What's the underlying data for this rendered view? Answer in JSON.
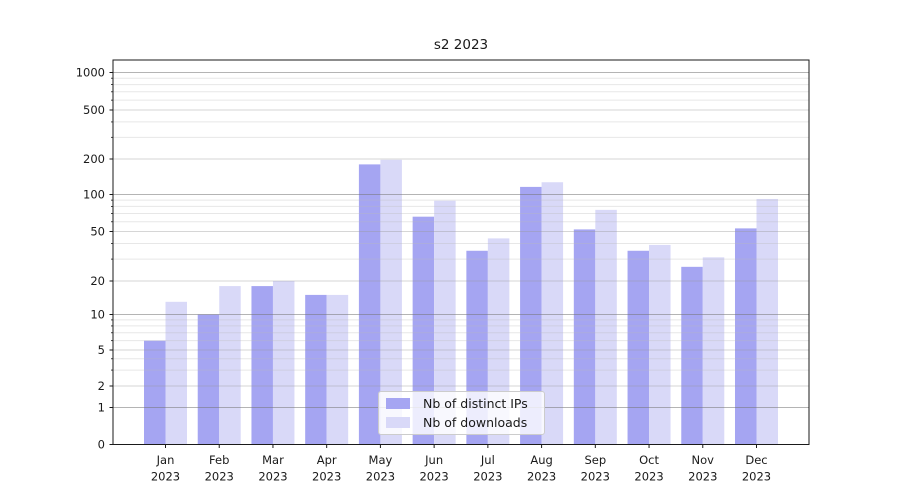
{
  "chart_data": {
    "type": "bar",
    "title": "s2 2023",
    "categories": [
      "Jan",
      "Feb",
      "Mar",
      "Apr",
      "May",
      "Jun",
      "Jul",
      "Aug",
      "Sep",
      "Oct",
      "Nov",
      "Dec"
    ],
    "year_label": "2023",
    "series": [
      {
        "name": "Nb of distinct IPs",
        "color": "#a5a5f2",
        "values": [
          6,
          10,
          18,
          15,
          180,
          66,
          35,
          116,
          52,
          35,
          26,
          53
        ]
      },
      {
        "name": "Nb of downloads",
        "color": "#d9d9f8",
        "values": [
          13,
          18,
          20,
          15,
          197,
          89,
          44,
          127,
          75,
          39,
          31,
          92
        ]
      }
    ],
    "y_axis": {
      "scale": "symlog",
      "ticks": [
        0,
        1,
        2,
        5,
        10,
        20,
        50,
        100,
        200,
        500,
        1000
      ],
      "major_gridlines": [
        1,
        10,
        100,
        1000
      ],
      "mid_gridlines": [
        2,
        5,
        20,
        50,
        200,
        500
      ],
      "minor_gridlines": [
        3,
        4,
        6,
        7,
        8,
        9,
        30,
        40,
        60,
        70,
        80,
        90,
        300,
        400,
        600,
        700,
        800,
        900
      ],
      "ylim": [
        0,
        1000
      ]
    },
    "legend_position": "lower center",
    "grid": true
  },
  "colors": {
    "spine": "#1a1a1a",
    "tick_text": "#1a1a1a",
    "grid_major": "#777777",
    "grid_mid": "#999999",
    "grid_minor": "#bbbbbb"
  }
}
